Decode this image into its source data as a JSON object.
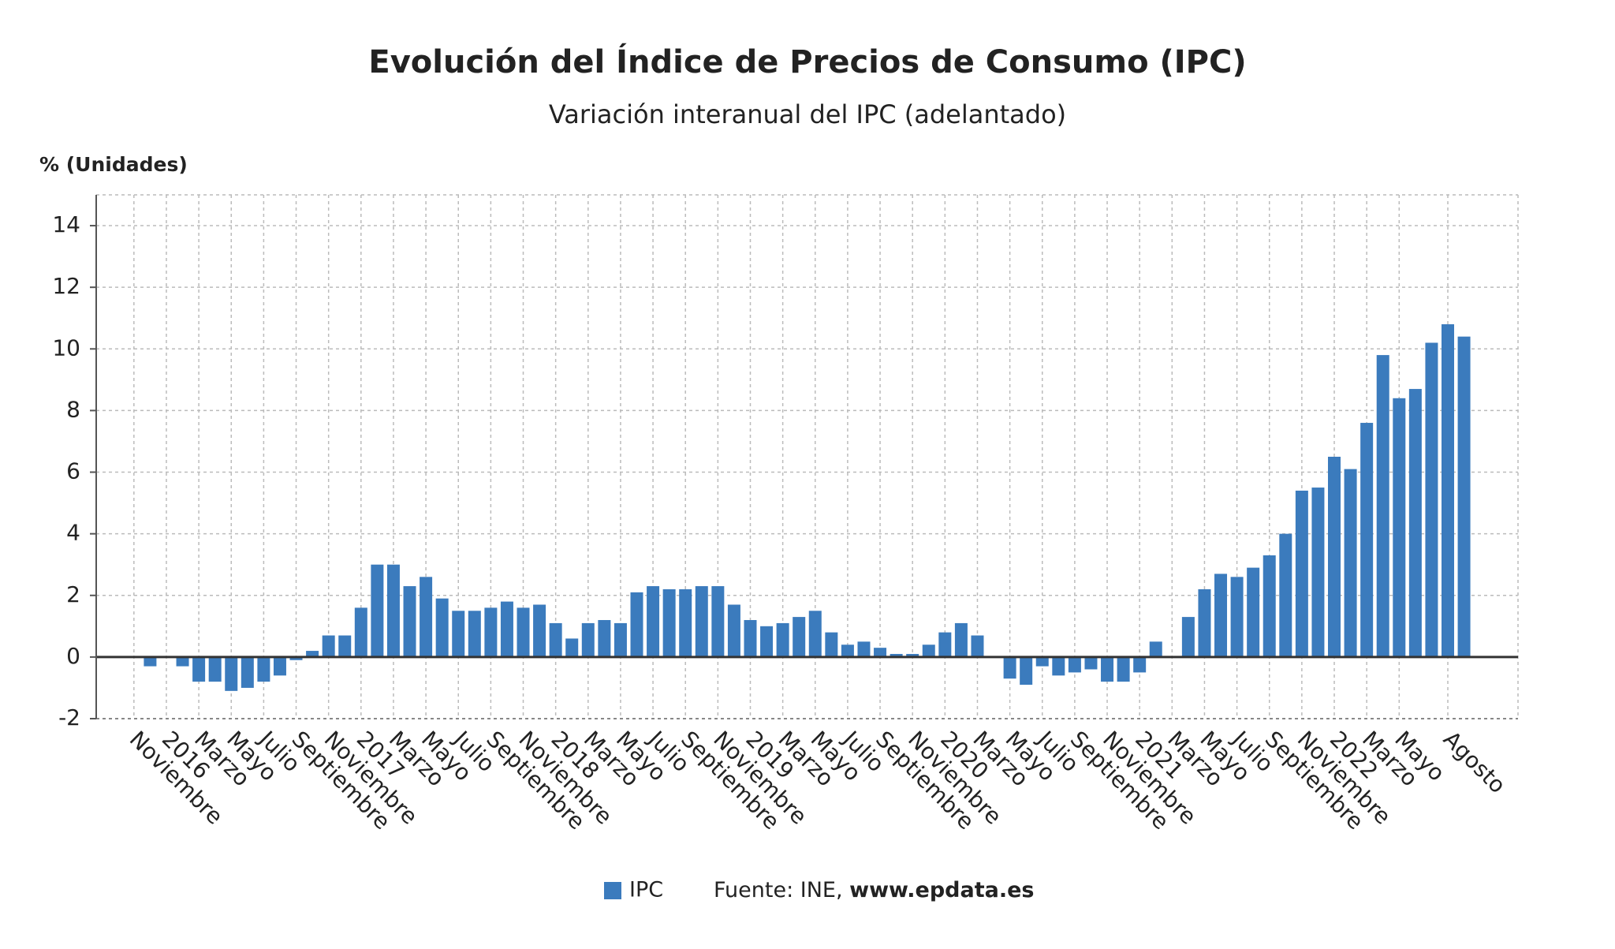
{
  "chart_data": {
    "type": "bar",
    "title": "Evolución del Índice de Precios de Consumo (IPC)",
    "subtitle": "Variación interanual del IPC (adelantado)",
    "y_label": "% (Unidades)",
    "source_label": "Fuente: INE,",
    "source_url": "www.epdata.es",
    "categories": [
      "Noviembre",
      null,
      "2016",
      null,
      "Marzo",
      null,
      "Mayo",
      null,
      "Julio",
      null,
      "Septiembre",
      null,
      "Noviembre",
      null,
      "2017",
      null,
      "Marzo",
      null,
      "Mayo",
      null,
      "Julio",
      null,
      "Septiembre",
      null,
      "Noviembre",
      null,
      "2018",
      null,
      "Marzo",
      null,
      "Mayo",
      null,
      "Julio",
      null,
      "Septiembre",
      null,
      "Noviembre",
      null,
      "2019",
      null,
      "Marzo",
      null,
      "Mayo",
      null,
      "Julio",
      null,
      "Septiembre",
      null,
      "Noviembre",
      null,
      "2020",
      null,
      "Marzo",
      null,
      "Mayo",
      null,
      "Julio",
      null,
      "Septiembre",
      null,
      "Noviembre",
      null,
      "2021",
      null,
      "Marzo",
      null,
      "Mayo",
      null,
      "Julio",
      null,
      "Septiembre",
      null,
      "Noviembre",
      null,
      "2022",
      null,
      "Marzo",
      null,
      "Mayo",
      null,
      null,
      "Agosto"
    ],
    "series": [
      {
        "name": "IPC",
        "color": "#3b7bbd",
        "values": [
          -0.3,
          0.0,
          -0.3,
          -0.8,
          -0.8,
          -1.1,
          -1.0,
          -0.8,
          -0.6,
          -0.1,
          0.2,
          0.7,
          0.7,
          1.6,
          3.0,
          3.0,
          2.3,
          2.6,
          1.9,
          1.5,
          1.5,
          1.6,
          1.8,
          1.6,
          1.7,
          1.1,
          0.6,
          1.1,
          1.2,
          1.1,
          2.1,
          2.3,
          2.2,
          2.2,
          2.3,
          2.3,
          1.7,
          1.2,
          1.0,
          1.1,
          1.3,
          1.5,
          0.8,
          0.4,
          0.5,
          0.3,
          0.1,
          0.1,
          0.4,
          0.8,
          1.1,
          0.7,
          0.0,
          -0.7,
          -0.9,
          -0.3,
          -0.6,
          -0.5,
          -0.4,
          -0.8,
          -0.8,
          -0.5,
          0.5,
          0.0,
          1.3,
          2.2,
          2.7,
          2.6,
          2.9,
          3.3,
          4.0,
          5.4,
          5.5,
          6.5,
          6.1,
          7.6,
          9.8,
          8.4,
          8.7,
          10.2,
          10.8,
          10.4
        ]
      }
    ],
    "ylim": [
      -2,
      15
    ],
    "yticks": [
      -2,
      0,
      2,
      4,
      6,
      8,
      10,
      12,
      14
    ],
    "grid": true
  }
}
